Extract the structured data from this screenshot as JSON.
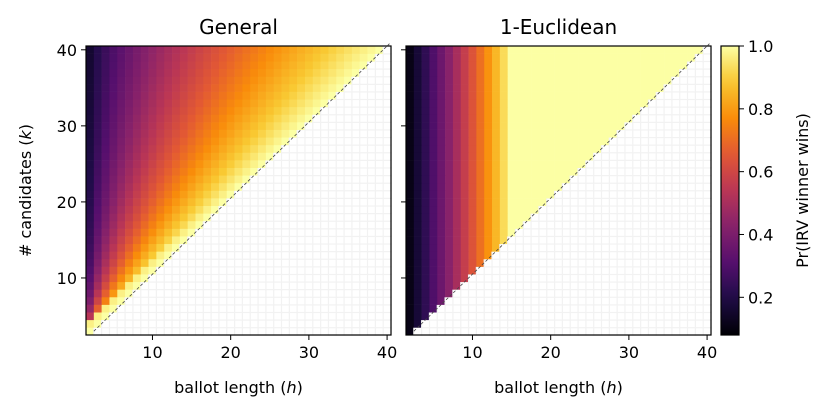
{
  "chart_data": [
    {
      "type": "heatmap",
      "title": "General",
      "xlabel": "ballot length (h)",
      "ylabel": "# candidates (k)",
      "x_range": [
        1,
        40
      ],
      "y_range": [
        3,
        40
      ],
      "xticks": [
        "10",
        "20",
        "30",
        "40"
      ],
      "yticks": [
        "10",
        "20",
        "30",
        "40"
      ],
      "cell_rule": "value defined where h < k; upper-left triangle",
      "value_model": "Pr = ((h-1)/(k-2))^0.6 approximately; Pr = 1 near diagonal",
      "anchor_values": [
        {
          "h": 1,
          "k": 40,
          "value": 0.05
        },
        {
          "h": 10,
          "k": 40,
          "value": 0.42
        },
        {
          "h": 20,
          "k": 40,
          "value": 0.65
        },
        {
          "h": 30,
          "k": 40,
          "value": 0.85
        },
        {
          "h": 39,
          "k": 40,
          "value": 1.0
        },
        {
          "h": 10,
          "k": 20,
          "value": 0.67
        }
      ]
    },
    {
      "type": "heatmap",
      "title": "1-Euclidean",
      "xlabel": "ballot length (h)",
      "x_range": [
        1,
        40
      ],
      "y_range": [
        3,
        40
      ],
      "xticks": [
        "10",
        "20",
        "30",
        "40"
      ],
      "cell_rule": "value defined where h < k; upper-left triangle",
      "value_model": "Pr rises quickly with h; reaches ~1.0 by h = 16",
      "anchor_values": [
        {
          "h": 1,
          "k": 40,
          "value": 0.05
        },
        {
          "h": 5,
          "k": 40,
          "value": 0.22
        },
        {
          "h": 10,
          "k": 40,
          "value": 0.55
        },
        {
          "h": 15,
          "k": 40,
          "value": 0.95
        },
        {
          "h": 20,
          "k": 40,
          "value": 1.0
        }
      ]
    }
  ],
  "colorbar": {
    "label": "Pr(IRV winner wins)",
    "range": [
      0.08,
      1.0
    ],
    "ticks": [
      "0.2",
      "0.4",
      "0.6",
      "0.8",
      "1.0"
    ],
    "tick_values": [
      0.2,
      0.4,
      0.6,
      0.8,
      1.0
    ],
    "colormap": "inferno"
  },
  "colors": {
    "background": "#ffffff",
    "grid_cell": "#f2f2f2",
    "frame": "#000000"
  }
}
